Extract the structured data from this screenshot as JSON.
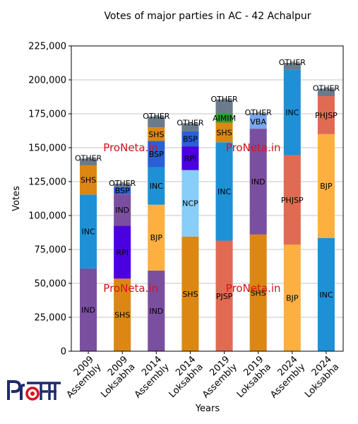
{
  "chart_data": {
    "type": "bar",
    "stacked": true,
    "title": "Votes of major parties in AC - 42 Achalpur",
    "xlabel": "Years",
    "ylabel": "Votes",
    "ylim": [
      0,
      225000
    ],
    "yticks": [
      0,
      25000,
      50000,
      75000,
      100000,
      125000,
      150000,
      175000,
      200000,
      225000
    ],
    "ytick_labels": [
      "0",
      "25,000",
      "50,000",
      "75,000",
      "100,000",
      "125,000",
      "150,000",
      "175,000",
      "200,000",
      "225,000"
    ],
    "grid": "horizontal",
    "categories": [
      [
        "2009",
        "Assembly"
      ],
      [
        "2009",
        "Loksabha"
      ],
      [
        "2014",
        "Assembly"
      ],
      [
        "2014",
        "Loksabha"
      ],
      [
        "2019",
        "Assembly"
      ],
      [
        "2019",
        "Loksabha"
      ],
      [
        "2024",
        "Assembly"
      ],
      [
        "2024",
        "Loksabha"
      ]
    ],
    "stacks": [
      [
        {
          "party": "IND",
          "value": 61000,
          "color": "#7b4fa0"
        },
        {
          "party": "INC",
          "value": 54500,
          "color": "#1e90d6"
        },
        {
          "party": "SHS",
          "value": 21500,
          "color": "#dc8712"
        },
        {
          "party": "OTHER",
          "value": 5000,
          "color": "#6b7b8c"
        }
      ],
      [
        {
          "party": "SHS",
          "value": 53500,
          "color": "#dc8712"
        },
        {
          "party": "RPI",
          "value": 39000,
          "color": "#4b00e0"
        },
        {
          "party": "IND",
          "value": 23500,
          "color": "#7b4fa0"
        },
        {
          "party": "BSP",
          "value": 5000,
          "color": "#2a5fd6"
        },
        {
          "party": "OTHER",
          "value": 2500,
          "color": "#6b7b8c"
        }
      ],
      [
        {
          "party": "IND",
          "value": 59500,
          "color": "#7b4fa0"
        },
        {
          "party": "BJP",
          "value": 48500,
          "color": "#fdb03f"
        },
        {
          "party": "INC",
          "value": 27500,
          "color": "#1e90d6"
        },
        {
          "party": "BSP",
          "value": 19500,
          "color": "#2a5fd6"
        },
        {
          "party": "SHS",
          "value": 10000,
          "color": "#dc8712"
        },
        {
          "party": "OTHER",
          "value": 8000,
          "color": "#6b7b8c"
        }
      ],
      [
        {
          "party": "SHS",
          "value": 84500,
          "color": "#dc8712"
        },
        {
          "party": "NCP",
          "value": 49000,
          "color": "#87cefa"
        },
        {
          "party": "RPI",
          "value": 17500,
          "color": "#4b00e0"
        },
        {
          "party": "BSP",
          "value": 11000,
          "color": "#2a5fd6"
        },
        {
          "party": "OTHER",
          "value": 6000,
          "color": "#6b7b8c"
        }
      ],
      [
        {
          "party": "PJSP",
          "value": 81500,
          "color": "#e06b52"
        },
        {
          "party": "INC",
          "value": 72500,
          "color": "#1e90d6"
        },
        {
          "party": "SHS",
          "value": 14500,
          "color": "#dc8712"
        },
        {
          "party": "AIMIM",
          "value": 7000,
          "color": "#2e9e2e"
        },
        {
          "party": "OTHER",
          "value": 10000,
          "color": "#6b7b8c"
        }
      ],
      [
        {
          "party": "SHS",
          "value": 86000,
          "color": "#dc8712"
        },
        {
          "party": "IND",
          "value": 78000,
          "color": "#7b4fa0"
        },
        {
          "party": "VBA",
          "value": 10500,
          "color": "#79a6ef"
        },
        {
          "party": "OTHER",
          "value": 1000,
          "color": "#6b7b8c"
        }
      ],
      [
        {
          "party": "BJP",
          "value": 78500,
          "color": "#fdb03f"
        },
        {
          "party": "PHJSP",
          "value": 66000,
          "color": "#e06b52"
        },
        {
          "party": "INC",
          "value": 63000,
          "color": "#1e90d6"
        },
        {
          "party": "OTHER",
          "value": 5000,
          "color": "#6b7b8c"
        }
      ],
      [
        {
          "party": "INC",
          "value": 83500,
          "color": "#1e90d6"
        },
        {
          "party": "BJP",
          "value": 76500,
          "color": "#fdb03f"
        },
        {
          "party": "PHJSP",
          "value": 28000,
          "color": "#e06b52"
        },
        {
          "party": "OTHER",
          "value": 5500,
          "color": "#6b7b8c"
        }
      ]
    ],
    "watermark": "ProNeta.in",
    "watermark_color": "#d4141e"
  },
  "logo": {
    "text": "ProNeta",
    "color": "#1f2a6b",
    "accent": "#d4141e"
  }
}
